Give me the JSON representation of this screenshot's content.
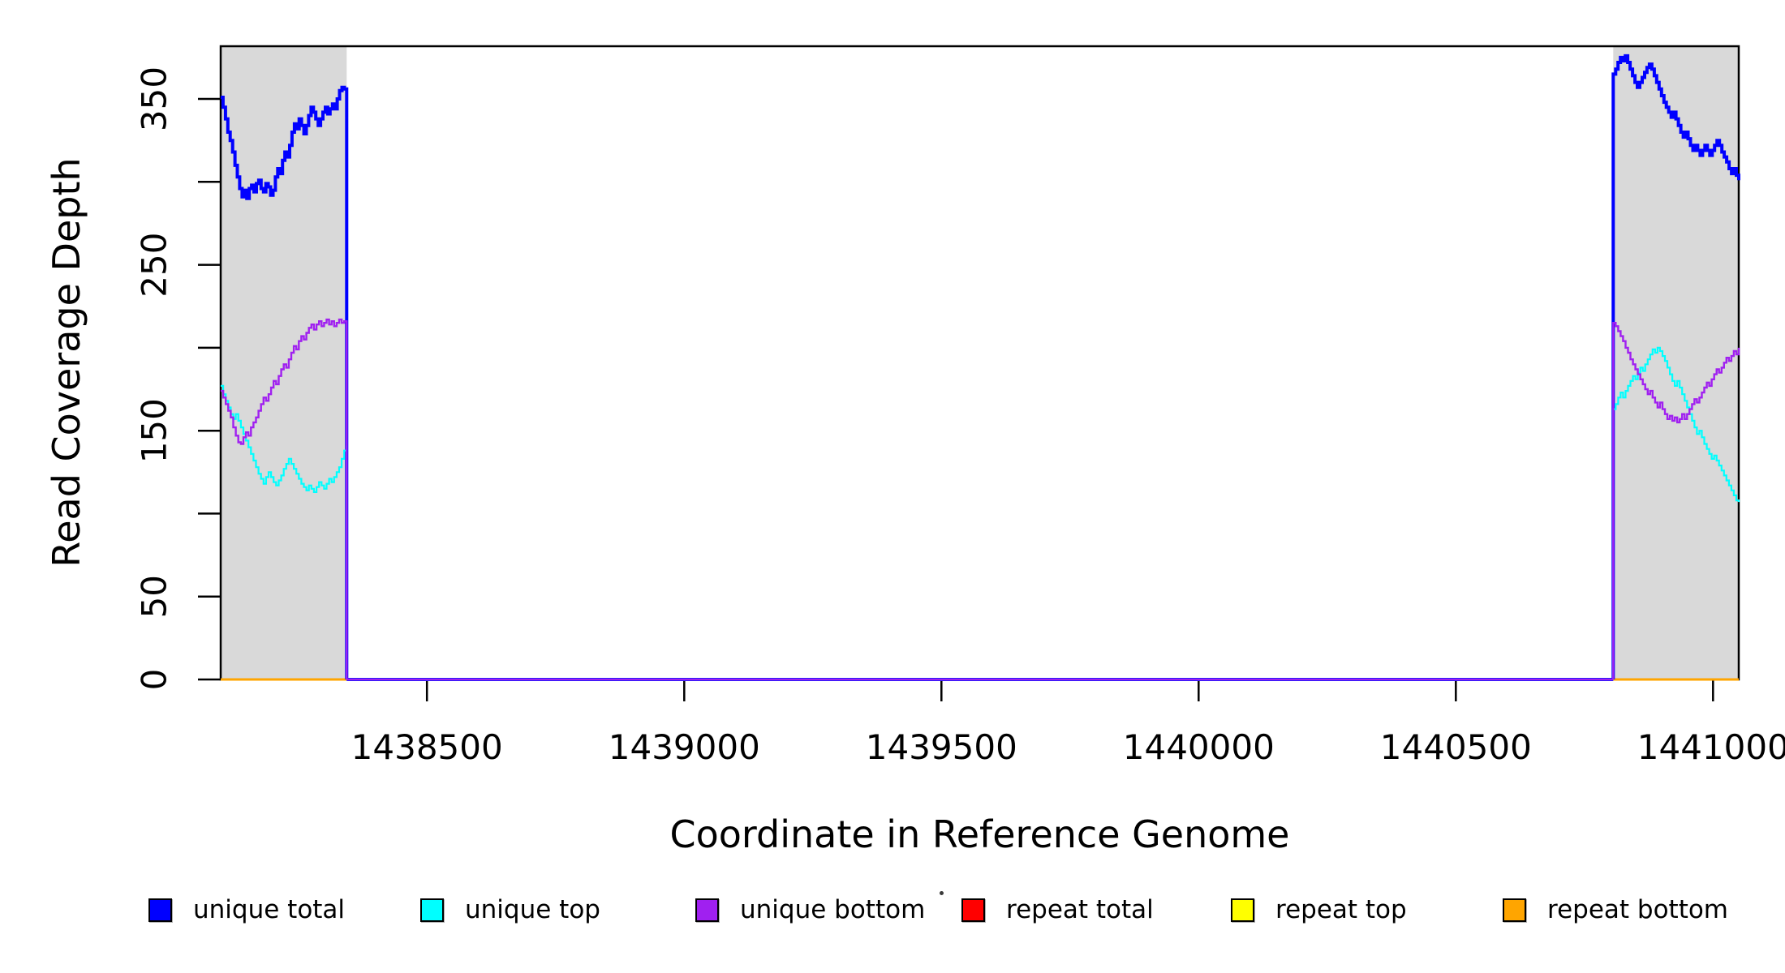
{
  "figure": {
    "background": "#FFFFFF",
    "plot_border_color": "#000000"
  },
  "titles": {
    "x_axis": "Coordinate in Reference Genome",
    "y_axis": "Read Coverage Depth"
  },
  "legend": {
    "items": [
      {
        "label": "unique total",
        "color": "#0000FF"
      },
      {
        "label": "unique top",
        "color": "#00FFFF"
      },
      {
        "label": "unique bottom",
        "color": "#A020F0"
      },
      {
        "label": "repeat total",
        "color": "#FF0000"
      },
      {
        "label": "repeat top",
        "color": "#FFFF00"
      },
      {
        "label": "repeat bottom",
        "color": "#FFA500"
      }
    ]
  },
  "chart_data": {
    "type": "line",
    "title": "",
    "xlabel": "Coordinate in Reference Genome",
    "ylabel": "Read Coverage Depth",
    "xlim": [
      1438099,
      1441050
    ],
    "ylim": [
      0,
      381.8
    ],
    "x_ticks": [
      1438500,
      1439000,
      1439500,
      1440000,
      1440500,
      1441000
    ],
    "x_tick_labels": [
      "1438500",
      "1439000",
      "1439500",
      "1440000",
      "1440500",
      "1441000"
    ],
    "y_ticks": [
      0,
      50,
      100,
      150,
      200,
      250,
      300,
      350
    ],
    "y_ticks_labeled": [
      0,
      50,
      150,
      250,
      350
    ],
    "grid": false,
    "legend_position": "bottom",
    "shaded_regions": [
      {
        "name": "left-flank",
        "x_start": 1438099,
        "x_end": 1438344,
        "color": "#D9D9D9"
      },
      {
        "name": "right-flank",
        "x_start": 1440806,
        "x_end": 1441050,
        "color": "#D9D9D9"
      }
    ],
    "series": [
      {
        "name": "repeat total",
        "color": "#FF0000",
        "line_width": 3,
        "segments": [
          {
            "x_start": 1438099,
            "x_end": 1441050,
            "values": [
              0,
              0
            ]
          }
        ]
      },
      {
        "name": "repeat top",
        "color": "#FFFF00",
        "line_width": 3,
        "segments": [
          {
            "x_start": 1438099,
            "x_end": 1441050,
            "values": [
              0,
              0
            ]
          }
        ]
      },
      {
        "name": "repeat bottom",
        "color": "#FFA500",
        "line_width": 3,
        "segments": [
          {
            "x_start": 1438099,
            "x_end": 1441050,
            "values": [
              0,
              0
            ]
          }
        ]
      },
      {
        "name": "unique total",
        "color": "#0000FF",
        "line_width": 4,
        "segments": [
          {
            "x_start": 1438099,
            "x_end": 1438344,
            "end_drop_to_zero": true,
            "values": [
              351,
              345,
              338,
              330,
              325,
              318,
              310,
              303,
              296,
              291,
              295,
              290,
              296,
              298,
              294,
              299,
              301,
              296,
              294,
              299,
              297,
              292,
              295,
              303,
              308,
              305,
              313,
              318,
              315,
              322,
              330,
              335,
              332,
              338,
              334,
              329,
              334,
              340,
              345,
              342,
              338,
              334,
              338,
              342,
              345,
              341,
              344,
              347,
              344,
              350,
              355,
              357,
              356,
              356
            ]
          },
          {
            "x_start": 1438344,
            "x_end": 1440806,
            "values": [
              0,
              0
            ]
          },
          {
            "x_start": 1440806,
            "x_end": 1441050,
            "start_rise_from_zero": true,
            "values": [
              365,
              368,
              372,
              375,
              373,
              376,
              372,
              368,
              364,
              360,
              357,
              360,
              363,
              366,
              369,
              371,
              368,
              364,
              360,
              356,
              352,
              348,
              345,
              342,
              339,
              342,
              338,
              334,
              330,
              327,
              330,
              326,
              322,
              319,
              322,
              319,
              316,
              319,
              322,
              319,
              316,
              319,
              322,
              325,
              322,
              318,
              315,
              312,
              308,
              305,
              308,
              304,
              301
            ]
          }
        ]
      },
      {
        "name": "unique top",
        "color": "#00FFFF",
        "line_width": 2.2,
        "segments": [
          {
            "x_start": 1438099,
            "x_end": 1438344,
            "end_drop_to_zero": true,
            "values": [
              177,
              172,
              168,
              164,
              160,
              157,
              160,
              156,
              152,
              148,
              144,
              140,
              136,
              132,
              128,
              124,
              121,
              118,
              122,
              125,
              122,
              119,
              117,
              120,
              123,
              127,
              130,
              133,
              130,
              127,
              124,
              121,
              118,
              116,
              114,
              117,
              115,
              113,
              116,
              119,
              117,
              115,
              118,
              121,
              119,
              122,
              125,
              128,
              133,
              138,
              141
            ]
          },
          {
            "x_start": 1438344,
            "x_end": 1440806,
            "values": [
              0,
              0
            ]
          },
          {
            "x_start": 1440806,
            "x_end": 1441050,
            "start_rise_from_zero": true,
            "values": [
              163,
              166,
              170,
              173,
              170,
              174,
              177,
              180,
              183,
              181,
              185,
              188,
              186,
              190,
              193,
              196,
              199,
              197,
              200,
              198,
              195,
              192,
              188,
              184,
              180,
              177,
              180,
              176,
              172,
              168,
              164,
              160,
              156,
              152,
              148,
              150,
              146,
              142,
              139,
              136,
              133,
              135,
              132,
              129,
              126,
              123,
              120,
              117,
              114,
              111,
              108,
              107
            ]
          }
        ]
      },
      {
        "name": "unique bottom",
        "color": "#A020F0",
        "line_width": 2.4,
        "segments": [
          {
            "x_start": 1438099,
            "x_end": 1438344,
            "end_drop_to_zero": true,
            "values": [
              174,
              170,
              166,
              162,
              158,
              152,
              147,
              143,
              142,
              146,
              149,
              147,
              152,
              155,
              158,
              162,
              166,
              170,
              168,
              172,
              176,
              180,
              178,
              183,
              187,
              190,
              188,
              193,
              197,
              201,
              199,
              204,
              207,
              205,
              209,
              212,
              214,
              211,
              214,
              216,
              213,
              215,
              217,
              214,
              216,
              213,
              215,
              217,
              215,
              216,
              215
            ]
          },
          {
            "x_start": 1438344,
            "x_end": 1440806,
            "values": [
              0,
              0
            ]
          },
          {
            "x_start": 1440806,
            "x_end": 1441050,
            "start_rise_from_zero": true,
            "values": [
              215,
              213,
              210,
              207,
              204,
              200,
              197,
              193,
              190,
              187,
              184,
              181,
              178,
              175,
              172,
              174,
              170,
              167,
              164,
              167,
              163,
              160,
              157,
              159,
              156,
              158,
              155,
              157,
              160,
              157,
              160,
              163,
              166,
              169,
              167,
              170,
              173,
              176,
              179,
              177,
              181,
              184,
              187,
              185,
              188,
              191,
              194,
              192,
              195,
              198,
              196,
              200
            ]
          }
        ]
      }
    ]
  }
}
